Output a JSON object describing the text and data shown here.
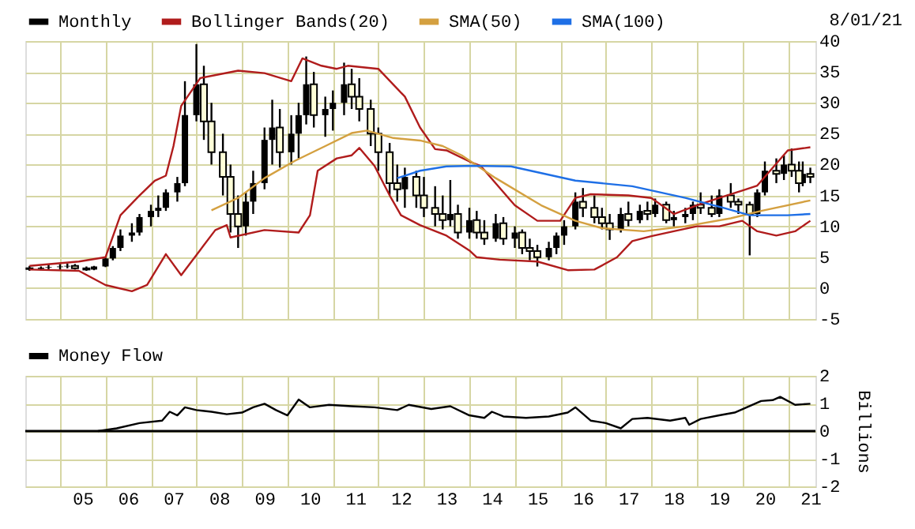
{
  "chart_data": [
    {
      "type": "candlestick",
      "xlim": [
        "2004-03-28",
        "2021-08-11"
      ],
      "ylim": [
        -5,
        40
      ],
      "yticks": [
        -5,
        0,
        5,
        10,
        15,
        20,
        25,
        30,
        35,
        40
      ],
      "xticks": [
        {
          "value": "2005-01-01",
          "label": null
        },
        {
          "value": "2006-01-01",
          "label": null
        },
        {
          "value": "2007-01-01",
          "label": null
        },
        {
          "value": "2008-01-01",
          "label": null
        },
        {
          "value": "2009-01-01",
          "label": null
        },
        {
          "value": "2010-01-01",
          "label": null
        },
        {
          "value": "2011-01-01",
          "label": null
        },
        {
          "value": "2012-01-01",
          "label": null
        },
        {
          "value": "2013-01-01",
          "label": null
        },
        {
          "value": "2014-01-01",
          "label": null
        },
        {
          "value": "2015-01-01",
          "label": null
        },
        {
          "value": "2016-01-01",
          "label": null
        },
        {
          "value": "2017-01-01",
          "label": null
        },
        {
          "value": "2018-01-01",
          "label": null
        },
        {
          "value": "2019-01-01",
          "label": null
        },
        {
          "value": "2020-01-01",
          "label": null
        },
        {
          "value": "2021-01-01",
          "label": null
        }
      ],
      "grid": true,
      "legend": "top",
      "tick_labels": "y",
      "annotations": [
        "8/01/21"
      ],
      "series": [
        {
          "name": "Monthly",
          "type": "candlestick",
          "color": "#000000",
          "x": [
            "2004-05",
            "2004-08",
            "2004-10",
            "2005-01",
            "2005-03",
            "2005-05",
            "2005-08",
            "2005-10",
            "2006-01",
            "2006-03",
            "2006-05",
            "2006-08",
            "2006-10",
            "2007-01",
            "2007-03",
            "2007-05",
            "2007-08",
            "2007-10",
            "2008-01",
            "2008-03",
            "2008-05",
            "2008-08",
            "2008-10",
            "2008-12",
            "2009-02",
            "2009-04",
            "2009-07",
            "2009-09",
            "2009-11",
            "2010-02",
            "2010-04",
            "2010-06",
            "2010-08",
            "2010-11",
            "2011-01",
            "2011-04",
            "2011-06",
            "2011-08",
            "2011-11",
            "2012-01",
            "2012-04",
            "2012-06",
            "2012-08",
            "2012-11",
            "2013-01",
            "2013-04",
            "2013-06",
            "2013-08",
            "2013-10",
            "2014-01",
            "2014-03",
            "2014-05",
            "2014-08",
            "2014-10",
            "2015-01",
            "2015-03",
            "2015-05",
            "2015-07",
            "2015-10",
            "2015-12",
            "2016-02",
            "2016-05",
            "2016-07",
            "2016-10",
            "2016-12",
            "2017-02",
            "2017-05",
            "2017-07",
            "2017-10",
            "2017-12",
            "2018-02",
            "2018-05",
            "2018-07",
            "2018-10",
            "2018-12",
            "2019-02",
            "2019-05",
            "2019-07",
            "2019-10",
            "2019-12",
            "2020-03",
            "2020-05",
            "2020-07",
            "2020-10",
            "2020-12",
            "2021-02",
            "2021-04",
            "2021-05",
            "2021-07"
          ],
          "ohlc": [
            [
              3.2,
              3.6,
              2.8,
              3.1
            ],
            [
              3.1,
              3.5,
              2.9,
              3.3
            ],
            [
              3.3,
              3.8,
              3.0,
              3.4
            ],
            [
              3.4,
              3.9,
              3.0,
              3.5
            ],
            [
              3.5,
              4.0,
              3.2,
              3.6
            ],
            [
              3.6,
              3.9,
              3.0,
              3.2
            ],
            [
              3.2,
              3.5,
              2.8,
              3.0
            ],
            [
              3.0,
              3.6,
              2.9,
              3.5
            ],
            [
              3.5,
              5.0,
              3.4,
              4.8
            ],
            [
              4.8,
              6.8,
              4.5,
              6.5
            ],
            [
              6.5,
              9.5,
              6.0,
              8.5
            ],
            [
              8.5,
              10.5,
              7.5,
              9.0
            ],
            [
              9.0,
              12.0,
              8.5,
              11.5
            ],
            [
              11.5,
              13.5,
              10.0,
              12.5
            ],
            [
              12.5,
              15.0,
              11.5,
              13.0
            ],
            [
              13.0,
              16.0,
              12.5,
              15.5
            ],
            [
              15.5,
              18.0,
              14.0,
              17.0
            ],
            [
              17.0,
              33.5,
              16.5,
              28.0
            ],
            [
              28.0,
              39.5,
              27.0,
              33.0
            ],
            [
              33.0,
              36.0,
              24.0,
              27.0
            ],
            [
              27.0,
              30.0,
              20.0,
              22.0
            ],
            [
              22.0,
              25.0,
              15.0,
              18.0
            ],
            [
              18.0,
              20.0,
              9.0,
              12.0
            ],
            [
              12.0,
              15.0,
              6.5,
              10.0
            ],
            [
              10.0,
              15.5,
              8.5,
              14.0
            ],
            [
              14.0,
              19.0,
              12.0,
              17.0
            ],
            [
              17.0,
              26.0,
              16.0,
              24.0
            ],
            [
              24.0,
              30.5,
              20.0,
              26.0
            ],
            [
              26.0,
              29.0,
              19.5,
              22.0
            ],
            [
              22.0,
              28.0,
              20.0,
              25.0
            ],
            [
              25.0,
              30.0,
              21.0,
              28.0
            ],
            [
              28.0,
              37.5,
              26.5,
              33.0
            ],
            [
              33.0,
              35.0,
              26.0,
              28.0
            ],
            [
              28.0,
              31.0,
              24.5,
              29.0
            ],
            [
              29.0,
              32.0,
              25.5,
              30.0
            ],
            [
              30.0,
              36.5,
              28.0,
              33.0
            ],
            [
              33.0,
              35.5,
              29.0,
              31.0
            ],
            [
              31.0,
              34.0,
              27.0,
              29.0
            ],
            [
              29.0,
              30.5,
              23.0,
              25.0
            ],
            [
              25.0,
              26.0,
              19.0,
              22.0
            ],
            [
              22.0,
              23.5,
              15.0,
              17.0
            ],
            [
              17.0,
              20.0,
              14.0,
              16.0
            ],
            [
              16.0,
              19.5,
              13.0,
              18.0
            ],
            [
              18.0,
              19.0,
              13.0,
              15.0
            ],
            [
              15.0,
              18.0,
              11.5,
              13.0
            ],
            [
              13.0,
              16.5,
              10.0,
              12.0
            ],
            [
              12.0,
              15.0,
              9.5,
              11.0
            ],
            [
              11.0,
              17.5,
              10.0,
              12.0
            ],
            [
              12.0,
              13.5,
              8.0,
              9.0
            ],
            [
              9.0,
              13.0,
              8.0,
              11.0
            ],
            [
              11.0,
              12.5,
              8.0,
              9.0
            ],
            [
              9.0,
              11.0,
              7.0,
              8.0
            ],
            [
              8.0,
              12.0,
              7.5,
              10.5
            ],
            [
              10.5,
              11.5,
              7.0,
              8.0
            ],
            [
              8.0,
              10.0,
              6.5,
              9.0
            ],
            [
              9.0,
              9.5,
              5.5,
              6.5
            ],
            [
              6.5,
              8.0,
              4.5,
              6.0
            ],
            [
              6.0,
              7.0,
              3.5,
              5.0
            ],
            [
              5.0,
              7.5,
              4.5,
              6.5
            ],
            [
              6.5,
              9.0,
              5.5,
              8.5
            ],
            [
              8.5,
              11.0,
              7.0,
              10.0
            ],
            [
              10.0,
              15.5,
              9.5,
              14.0
            ],
            [
              14.0,
              16.2,
              11.5,
              13.0
            ],
            [
              13.0,
              15.0,
              10.5,
              11.5
            ],
            [
              11.5,
              13.0,
              9.5,
              10.5
            ],
            [
              10.5,
              12.0,
              7.8,
              9.5
            ],
            [
              9.5,
              13.0,
              9.0,
              12.0
            ],
            [
              12.0,
              14.0,
              10.0,
              11.0
            ],
            [
              11.0,
              13.5,
              10.5,
              12.5
            ],
            [
              12.5,
              14.0,
              11.0,
              12.0
            ],
            [
              12.0,
              14.5,
              11.5,
              13.5
            ],
            [
              13.5,
              14.0,
              10.5,
              11.0
            ],
            [
              11.0,
              12.5,
              10.0,
              11.5
            ],
            [
              11.5,
              13.0,
              10.5,
              12.0
            ],
            [
              12.0,
              14.0,
              11.0,
              13.5
            ],
            [
              13.5,
              15.5,
              12.0,
              13.0
            ],
            [
              13.0,
              15.0,
              11.5,
              12.0
            ],
            [
              12.0,
              16.0,
              11.5,
              15.0
            ],
            [
              15.0,
              17.0,
              13.0,
              14.0
            ],
            [
              14.0,
              14.5,
              12.0,
              13.5
            ],
            [
              13.5,
              14.0,
              5.3,
              12.0
            ],
            [
              12.0,
              16.0,
              11.5,
              15.5
            ],
            [
              15.5,
              20.5,
              15.0,
              19.0
            ],
            [
              19.0,
              21.0,
              17.0,
              18.5
            ],
            [
              18.5,
              21.5,
              17.5,
              20.0
            ],
            [
              20.0,
              22.6,
              18.0,
              19.0
            ],
            [
              19.0,
              20.5,
              15.5,
              17.0
            ],
            [
              17.0,
              20.5,
              16.5,
              18.5
            ],
            [
              18.5,
              19.5,
              17.0,
              18.0
            ]
          ]
        },
        {
          "name": "Bollinger Bands(20)",
          "type": "line",
          "color": "#b01c1c",
          "x": [
            "2004-05",
            "2005-06",
            "2006-01",
            "2006-05",
            "2006-10",
            "2007-02",
            "2007-05",
            "2007-07",
            "2007-09",
            "2008-02",
            "2008-12",
            "2009-07",
            "2010-02",
            "2010-05",
            "2010-10",
            "2011-02",
            "2011-05",
            "2012-01",
            "2012-08",
            "2012-12",
            "2013-04",
            "2013-07",
            "2014-01",
            "2014-04",
            "2015-01",
            "2015-07",
            "2016-01",
            "2016-05",
            "2016-09",
            "2017-07",
            "2018-01",
            "2018-07",
            "2019-01",
            "2019-07",
            "2020-01",
            "2020-05",
            "2021-01",
            "2021-07"
          ],
          "values": [
            3.6,
            4.3,
            5.0,
            11.8,
            15.0,
            17.4,
            18.2,
            23.0,
            29.5,
            34.0,
            35.2,
            34.8,
            33.5,
            37.2,
            36.0,
            35.5,
            36.0,
            35.5,
            31.0,
            26.0,
            22.5,
            22.3,
            20.5,
            19.8,
            13.4,
            10.9,
            10.9,
            14.6,
            15.2,
            15.0,
            14.6,
            12.0,
            13.4,
            14.6,
            15.8,
            16.6,
            22.3,
            22.8
          ]
        },
        {
          "type": "line",
          "color": "#b01c1c",
          "x": [
            "2004-05",
            "2005-06",
            "2006-01",
            "2006-08",
            "2006-12",
            "2007-05",
            "2007-09",
            "2008-06",
            "2008-09",
            "2008-10",
            "2009-07",
            "2010-04",
            "2010-07",
            "2010-09",
            "2011-02",
            "2011-06",
            "2011-08",
            "2011-12",
            "2012-04",
            "2012-07",
            "2012-12",
            "2013-07",
            "2014-01",
            "2014-03",
            "2014-09",
            "2015-07",
            "2016-03",
            "2016-10",
            "2017-04",
            "2017-08",
            "2018-01",
            "2018-07",
            "2019-01",
            "2019-07",
            "2020-01",
            "2020-05",
            "2020-10",
            "2021-03",
            "2021-07"
          ],
          "values": [
            3.0,
            2.8,
            0.5,
            -0.5,
            0.5,
            5.5,
            2.1,
            9.4,
            10.2,
            8.2,
            9.4,
            9.0,
            11.8,
            19.0,
            21.0,
            21.5,
            22.7,
            19.8,
            15.0,
            11.8,
            10.2,
            8.5,
            6.1,
            5.0,
            4.6,
            4.3,
            2.9,
            3.0,
            5.0,
            7.6,
            8.4,
            9.2,
            10.0,
            10.0,
            10.9,
            9.2,
            8.5,
            9.2,
            10.9
          ]
        },
        {
          "name": "SMA(50)",
          "type": "line",
          "color": "#d4a040",
          "x": [
            "2008-05",
            "2008-12",
            "2009-07",
            "2010-03",
            "2010-11",
            "2011-06",
            "2011-10",
            "2012-05",
            "2012-12",
            "2013-06",
            "2013-11",
            "2014-08",
            "2015-08",
            "2016-05",
            "2016-12",
            "2017-11",
            "2018-10",
            "2019-10",
            "2020-06",
            "2021-07"
          ],
          "values": [
            12.6,
            14.6,
            17.8,
            20.6,
            23.0,
            25.1,
            25.5,
            24.3,
            23.9,
            23.0,
            21.5,
            17.8,
            13.4,
            10.9,
            9.7,
            9.2,
            10.0,
            11.3,
            12.5,
            14.2
          ]
        },
        {
          "name": "SMA(100)",
          "type": "line",
          "color": "#1e6fe6",
          "x": [
            "2012-06",
            "2012-12",
            "2013-07",
            "2014-02",
            "2014-12",
            "2016-05",
            "2017-08",
            "2018-10",
            "2019-08",
            "2020-03",
            "2021-01",
            "2021-07"
          ],
          "values": [
            17.8,
            19.0,
            19.7,
            19.8,
            19.7,
            17.4,
            16.5,
            14.6,
            13.0,
            11.8,
            11.8,
            12.0
          ]
        }
      ]
    },
    {
      "type": "line",
      "xlim": [
        "2004-03-28",
        "2021-08-11"
      ],
      "ylim": [
        -2,
        2
      ],
      "yticks": [
        -2,
        -1,
        0,
        1,
        2
      ],
      "ylabel": "Billions",
      "xticks": [
        {
          "value": "2005-01-01",
          "label": null
        },
        {
          "value": "2006-01-01",
          "label": null
        },
        {
          "value": "2007-01-01",
          "label": null
        },
        {
          "value": "2008-01-01",
          "label": null
        },
        {
          "value": "2009-01-01",
          "label": null
        },
        {
          "value": "2010-01-01",
          "label": null
        },
        {
          "value": "2011-01-01",
          "label": null
        },
        {
          "value": "2012-01-01",
          "label": null
        },
        {
          "value": "2013-01-01",
          "label": null
        },
        {
          "value": "2014-01-01",
          "label": null
        },
        {
          "value": "2015-01-01",
          "label": null
        },
        {
          "value": "2016-01-01",
          "label": null
        },
        {
          "value": "2017-01-01",
          "label": null
        },
        {
          "value": "2018-01-01",
          "label": null
        },
        {
          "value": "2019-01-01",
          "label": null
        },
        {
          "value": "2020-01-01",
          "label": null
        },
        {
          "value": "2021-01-01",
          "label": null
        },
        {
          "value": "2005-07-01",
          "label": "05"
        },
        {
          "value": "2006-07-01",
          "label": "06"
        },
        {
          "value": "2007-07-01",
          "label": "07"
        },
        {
          "value": "2008-07-01",
          "label": "08"
        },
        {
          "value": "2009-07-01",
          "label": "09"
        },
        {
          "value": "2010-07-01",
          "label": "10"
        },
        {
          "value": "2011-07-01",
          "label": "11"
        },
        {
          "value": "2012-07-01",
          "label": "12"
        },
        {
          "value": "2013-07-01",
          "label": "13"
        },
        {
          "value": "2014-07-01",
          "label": "14"
        },
        {
          "value": "2015-07-01",
          "label": "15"
        },
        {
          "value": "2016-07-01",
          "label": "16"
        },
        {
          "value": "2017-07-01",
          "label": "17"
        },
        {
          "value": "2018-07-01",
          "label": "18"
        },
        {
          "value": "2019-07-01",
          "label": "19"
        },
        {
          "value": "2020-07-01",
          "label": "20"
        },
        {
          "value": "2021-07-01",
          "label": "21"
        }
      ],
      "grid": true,
      "legend": "top",
      "ref_lines": [
        {
          "axis": "y",
          "value": 0,
          "color": "#000000"
        }
      ],
      "series": [
        {
          "name": "Money Flow",
          "color": "#000000",
          "x": [
            "2005-11",
            "2006-04",
            "2006-10",
            "2007-04",
            "2007-06",
            "2007-08",
            "2007-10",
            "2008-01",
            "2008-05",
            "2008-09",
            "2009-01",
            "2009-04",
            "2009-07",
            "2009-10",
            "2010-01",
            "2010-04",
            "2010-07",
            "2010-12",
            "2011-06",
            "2011-12",
            "2012-06",
            "2012-09",
            "2013-03",
            "2013-08",
            "2014-01",
            "2014-05",
            "2014-07",
            "2014-10",
            "2015-04",
            "2015-10",
            "2016-03",
            "2016-05",
            "2016-09",
            "2017-01",
            "2017-05",
            "2017-08",
            "2017-12",
            "2018-06",
            "2018-10",
            "2018-11",
            "2019-02",
            "2019-07",
            "2019-11",
            "2020-06",
            "2020-09",
            "2020-11",
            "2021-03",
            "2021-07"
          ],
          "values": [
            0,
            0.1,
            0.29,
            0.38,
            0.7,
            0.57,
            0.86,
            0.76,
            0.7,
            0.61,
            0.67,
            0.86,
            0.99,
            0.76,
            0.57,
            1.14,
            0.86,
            0.95,
            0.9,
            0.86,
            0.76,
            0.95,
            0.8,
            0.9,
            0.57,
            0.48,
            0.7,
            0.53,
            0.48,
            0.53,
            0.67,
            0.86,
            0.38,
            0.29,
            0.1,
            0.44,
            0.48,
            0.38,
            0.48,
            0.23,
            0.44,
            0.57,
            0.67,
            1.09,
            1.12,
            1.24,
            0.95,
            0.99
          ]
        }
      ]
    }
  ]
}
